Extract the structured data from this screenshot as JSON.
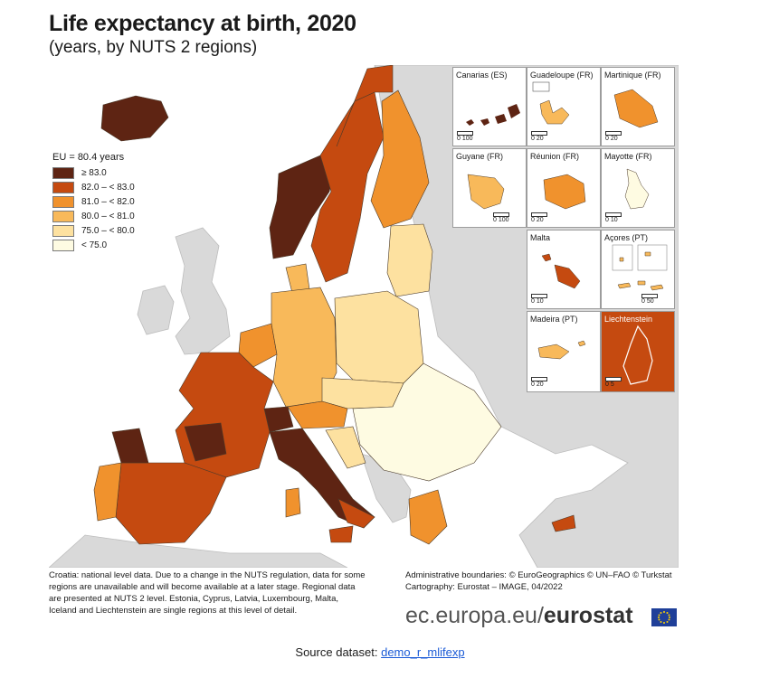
{
  "title": "Life expectancy at birth, 2020",
  "subtitle": "(years, by NUTS 2 regions)",
  "legend": {
    "title": "EU = 80.4 years",
    "classes": [
      {
        "label": "≥ 83.0",
        "color": "#5e2413"
      },
      {
        "label": "82.0 – < 83.0",
        "color": "#c54a10"
      },
      {
        "label": "81.0 – < 82.0",
        "color": "#f0922d"
      },
      {
        "label": "80.0 – < 81.0",
        "color": "#f8b95a"
      },
      {
        "label": "75.0 – < 80.0",
        "color": "#fde1a0"
      },
      {
        "label": "< 75.0",
        "color": "#fefbe2"
      }
    ]
  },
  "colors": {
    "non_data": "#d9d9d9",
    "sea": "#ffffff",
    "boundary": "#4a3a2a"
  },
  "insets": [
    {
      "name": "Canarias (ES)",
      "scale": "0 100"
    },
    {
      "name": "Guadeloupe (FR)",
      "scale": "0 20"
    },
    {
      "name": "Martinique (FR)",
      "scale": "0 20"
    },
    {
      "name": "Guyane (FR)",
      "scale": "0 100"
    },
    {
      "name": "Réunion (FR)",
      "scale": "0 20"
    },
    {
      "name": "Mayotte (FR)",
      "scale": "0 10"
    },
    {
      "name": "Malta",
      "scale": "0 10"
    },
    {
      "name": "Açores (PT)",
      "scale": "0 50"
    },
    {
      "name": "Madeira (PT)",
      "scale": "0 20"
    },
    {
      "name": "Liechtenstein",
      "scale": "0 5"
    }
  ],
  "footnote": "Croatia: national level data. Due to a change in the NUTS regulation, data for some regions are unavailable and will become available at a later stage. Regional data are presented at NUTS 2 level. Estonia, Cyprus, Latvia, Luxembourg, Malta, Iceland and Liechtenstein are single regions at this level of detail.",
  "credits": {
    "line1": "Administrative boundaries: © EuroGeographics © UN–FAO © Turkstat",
    "line2": "Cartography: Eurostat – IMAGE, 04/2022"
  },
  "brand": {
    "domain": "ec.europa.eu/",
    "name": "eurostat"
  },
  "source": {
    "label": "Source dataset:",
    "link": "demo_r_mlifexp"
  }
}
